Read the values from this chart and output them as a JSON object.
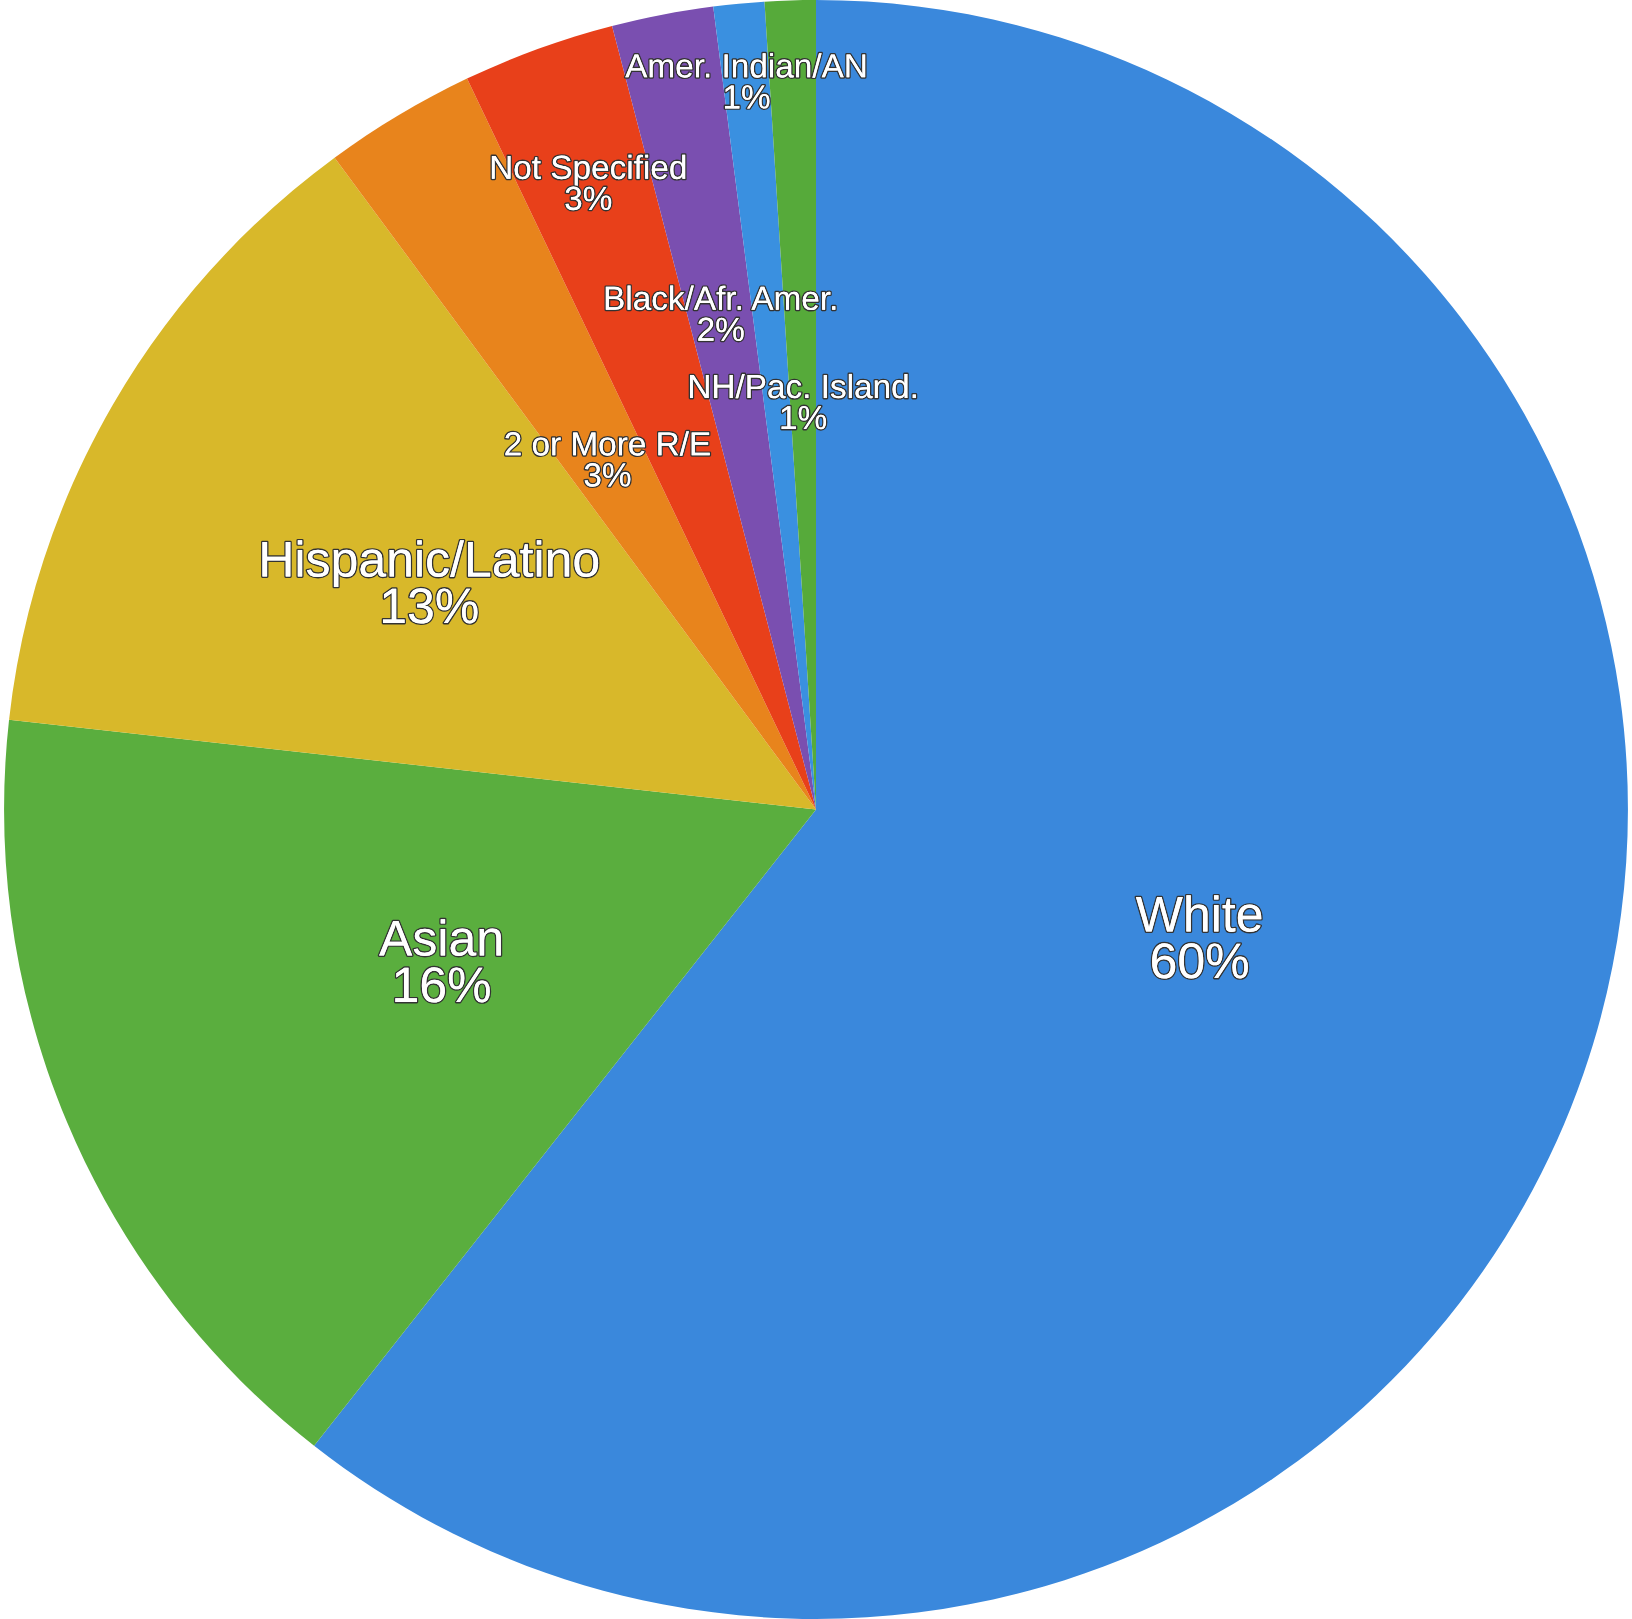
{
  "chart_data": {
    "type": "pie",
    "categories": [
      "White",
      "Asian",
      "Hispanic/Latino",
      "2 or More R/E",
      "Not Specified",
      "Black/Afr. Amer.",
      "Amer. Indian/AN",
      "NH/Pac. Island."
    ],
    "values": [
      60,
      16,
      13,
      3,
      3,
      2,
      1,
      1
    ],
    "colors": [
      "#3a88dc",
      "#5aae3e",
      "#d8b82a",
      "#e8841c",
      "#e8401a",
      "#7a4fb0",
      "#3a90e0",
      "#56aa3a"
    ],
    "value_labels": [
      "60%",
      "16%",
      "13%",
      "3%",
      "3%",
      "2%",
      "1%",
      "1%"
    ]
  }
}
